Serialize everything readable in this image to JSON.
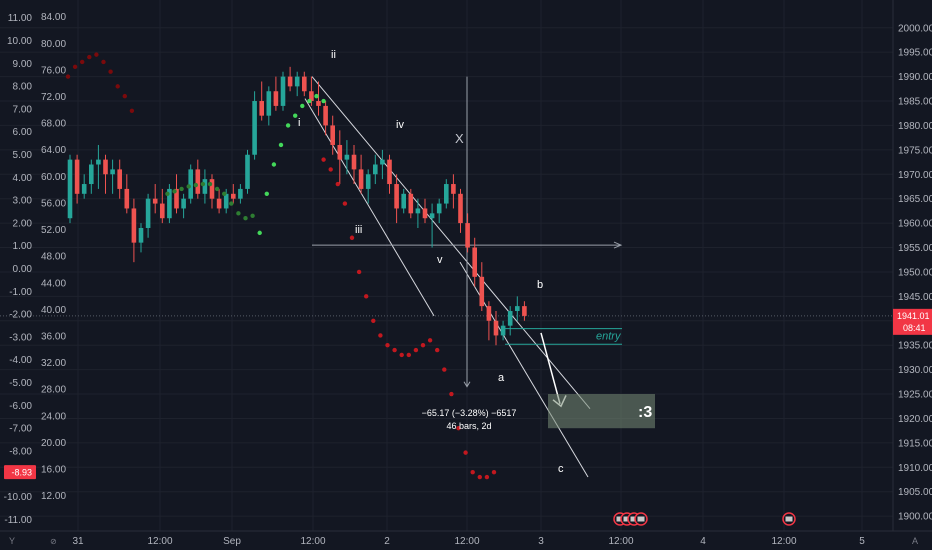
{
  "colors": {
    "bg": "#131722",
    "up": "#26a69a",
    "down": "#ef5350",
    "grid": "#1e222d",
    "text": "#b2b5be",
    "accent": "#f23645"
  },
  "chart_data": {
    "type": "candlestick",
    "title": "",
    "x_ticks": [
      "31",
      "12:00",
      "Sep",
      "12:00",
      "2",
      "12:00",
      "3",
      "12:00",
      "4",
      "12:00",
      "5"
    ],
    "price_axis": {
      "ticks": [
        2000,
        1995,
        1990,
        1985,
        1980,
        1975,
        1970,
        1965,
        1960,
        1955,
        1950,
        1945,
        1940,
        1935,
        1930,
        1925,
        1920,
        1915,
        1910,
        1905,
        1900
      ],
      "range": [
        1899,
        2002
      ],
      "labels": [
        "2000.00",
        "1995.00",
        "1990.00",
        "1985.00",
        "1980.00",
        "1975.00",
        "1970.00",
        "1965.00",
        "1960.00",
        "1955.00",
        "1950.00",
        "1945.00",
        "1940.00",
        "1935.00",
        "1930.00",
        "1925.00",
        "1920.00",
        "1915.00",
        "1910.00",
        "1905.00",
        "1900.00"
      ]
    },
    "current_price": {
      "label": "1941.01",
      "time_left": "08:41",
      "value": 1941.01
    },
    "left_axis_1": {
      "labels": [
        "11.00",
        "10.00",
        "9.00",
        "8.00",
        "7.00",
        "6.00",
        "5.00",
        "4.00",
        "3.00",
        "2.00",
        "1.00",
        "0.00",
        "-1.00",
        "-2.00",
        "-3.00",
        "-4.00",
        "-5.00",
        "-6.00",
        "-7.00",
        "-8.00",
        "-9.00",
        "-10.00",
        "-11.00"
      ],
      "values": [
        11,
        10,
        9,
        8,
        7,
        6,
        5,
        4,
        3,
        2,
        1,
        0,
        -1,
        -2,
        -3,
        -4,
        -5,
        -6,
        -7,
        -8,
        -9,
        -10,
        -11
      ],
      "range": [
        -11.6,
        11.6
      ],
      "badge": "-8.93",
      "badge_value": -8.93
    },
    "left_axis_2": {
      "labels": [
        "84.00",
        "80.00",
        "76.00",
        "72.00",
        "68.00",
        "64.00",
        "60.00",
        "56.00",
        "52.00",
        "48.00",
        "44.00",
        "40.00",
        "36.00",
        "32.00",
        "28.00",
        "24.00",
        "20.00",
        "16.00",
        "12.00"
      ],
      "values": [
        84,
        80,
        76,
        72,
        68,
        64,
        60,
        56,
        52,
        48,
        44,
        40,
        36,
        32,
        28,
        24,
        20,
        16,
        12
      ],
      "range": [
        8.8,
        85.9
      ]
    },
    "candles": [
      [
        1961,
        1974,
        1960,
        1973
      ],
      [
        1973,
        1974,
        1964,
        1966
      ],
      [
        1966,
        1970,
        1965,
        1968
      ],
      [
        1968,
        1973,
        1966,
        1972
      ],
      [
        1972,
        1976,
        1967,
        1973
      ],
      [
        1973,
        1974,
        1966,
        1970
      ],
      [
        1970,
        1973,
        1966,
        1971
      ],
      [
        1971,
        1973,
        1965,
        1967
      ],
      [
        1967,
        1970,
        1962,
        1963
      ],
      [
        1963,
        1965,
        1952,
        1956
      ],
      [
        1956,
        1960,
        1954,
        1959
      ],
      [
        1959,
        1966,
        1957,
        1965
      ],
      [
        1965,
        1968,
        1962,
        1964
      ],
      [
        1964,
        1967,
        1960,
        1961
      ],
      [
        1961,
        1968,
        1960,
        1967
      ],
      [
        1967,
        1970,
        1962,
        1963
      ],
      [
        1963,
        1966,
        1961,
        1965
      ],
      [
        1965,
        1972,
        1964,
        1971
      ],
      [
        1971,
        1973,
        1965,
        1966
      ],
      [
        1966,
        1971,
        1964,
        1969
      ],
      [
        1969,
        1970,
        1963,
        1965
      ],
      [
        1965,
        1967,
        1962,
        1963
      ],
      [
        1963,
        1967,
        1962,
        1966
      ],
      [
        1966,
        1968,
        1964,
        1965
      ],
      [
        1965,
        1968,
        1964,
        1967
      ],
      [
        1967,
        1975,
        1966,
        1974
      ],
      [
        1974,
        1987,
        1973,
        1985
      ],
      [
        1985,
        1989,
        1981,
        1982
      ],
      [
        1982,
        1988,
        1980,
        1987
      ],
      [
        1987,
        1990,
        1983,
        1984
      ],
      [
        1984,
        1991,
        1983,
        1990
      ],
      [
        1990,
        1992,
        1987,
        1988
      ],
      [
        1988,
        1991,
        1986,
        1990
      ],
      [
        1990,
        1991,
        1986,
        1987
      ],
      [
        1987,
        1990,
        1984,
        1985
      ],
      [
        1985,
        1989,
        1982,
        1984
      ],
      [
        1984,
        1985,
        1978,
        1980
      ],
      [
        1980,
        1982,
        1974,
        1976
      ],
      [
        1976,
        1979,
        1968,
        1973
      ],
      [
        1973,
        1977,
        1970,
        1974
      ],
      [
        1974,
        1976,
        1968,
        1971
      ],
      [
        1971,
        1974,
        1966,
        1967
      ],
      [
        1967,
        1971,
        1964,
        1970
      ],
      [
        1970,
        1974,
        1968,
        1972
      ],
      [
        1972,
        1975,
        1969,
        1973
      ],
      [
        1973,
        1974,
        1966,
        1968
      ],
      [
        1968,
        1970,
        1960,
        1963
      ],
      [
        1963,
        1967,
        1962,
        1966
      ],
      [
        1966,
        1967,
        1961,
        1962
      ],
      [
        1962,
        1965,
        1959,
        1963
      ],
      [
        1963,
        1965,
        1960,
        1961
      ],
      [
        1961,
        1964,
        1955,
        1962
      ],
      [
        1962,
        1965,
        1960,
        1964
      ],
      [
        1964,
        1969,
        1963,
        1968
      ],
      [
        1968,
        1970,
        1963,
        1966
      ],
      [
        1966,
        1967,
        1958,
        1960
      ],
      [
        1960,
        1962,
        1954,
        1955
      ],
      [
        1955,
        1957,
        1947,
        1949
      ],
      [
        1949,
        1952,
        1942,
        1943
      ],
      [
        1943,
        1944,
        1936,
        1940
      ],
      [
        1940,
        1942,
        1935,
        1937
      ],
      [
        1937,
        1940,
        1936,
        1939
      ],
      [
        1939,
        1943,
        1937,
        1942
      ],
      [
        1942,
        1945,
        1940,
        1943
      ],
      [
        1943,
        1944,
        1940,
        1941
      ]
    ],
    "sar_dots": [
      {
        "start_index": 0,
        "values": [
          1990,
          1992,
          1993,
          1994,
          1994.5,
          1993,
          1991,
          1988,
          1986,
          1983
        ],
        "color": "#7a0a0c"
      },
      {
        "start_index": 14,
        "values": [
          1966,
          1966.5,
          1967,
          1967.5,
          1967.8,
          1968,
          1968,
          1967,
          1966,
          1964,
          1962,
          1961,
          1961.5
        ],
        "color": "#2e7d32"
      },
      {
        "start_index": 27,
        "values": [
          1958,
          1966,
          1972,
          1976,
          1980,
          1982,
          1984,
          1985,
          1986,
          1985
        ],
        "color": "#43d85a"
      },
      {
        "start_index": 36,
        "values": [
          1973,
          1971,
          1968,
          1964,
          1957,
          1950,
          1945,
          1940,
          1937,
          1935,
          1934,
          1933,
          1933,
          1934,
          1935,
          1936,
          1934,
          1930,
          1925,
          1918,
          1913,
          1909,
          1908,
          1908,
          1909
        ],
        "color": "#c2181f"
      }
    ],
    "wave_labels": [
      "ii",
      "i",
      "iv",
      "iii",
      "v",
      "X",
      "a",
      "b",
      "c"
    ],
    "measure": {
      "line1": "−65.17 (−3.28%) −6517",
      "line2": "46 bars, 2d"
    },
    "entry_label": "entry",
    "target_label": ":3"
  },
  "ui": {
    "corner_right": "A",
    "corner_left": "Y"
  }
}
